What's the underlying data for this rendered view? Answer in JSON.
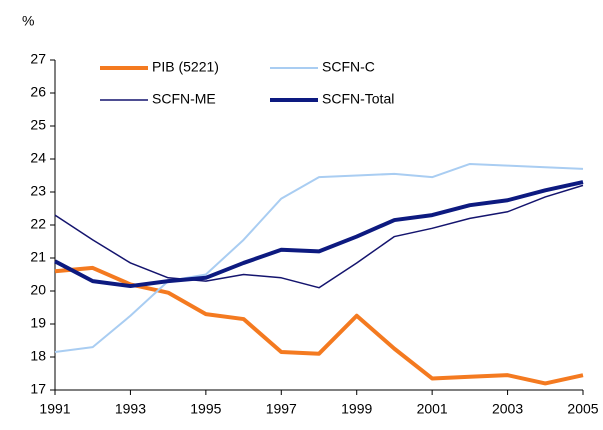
{
  "chart_data": {
    "type": "line",
    "y_label": "%",
    "x": [
      1991,
      1992,
      1993,
      1994,
      1995,
      1996,
      1997,
      1998,
      1999,
      2000,
      2001,
      2002,
      2003,
      2004,
      2005
    ],
    "series": [
      {
        "name": "PIB (5221)",
        "color": "#f47a20",
        "width": 4,
        "values": [
          20.6,
          20.7,
          20.2,
          19.95,
          19.3,
          19.15,
          18.15,
          18.1,
          19.25,
          18.25,
          17.35,
          17.4,
          17.45,
          17.2,
          17.45
        ]
      },
      {
        "name": "SCFN-C",
        "color": "#a9cdf2",
        "width": 2,
        "values": [
          18.15,
          18.3,
          19.25,
          20.3,
          20.5,
          21.55,
          22.8,
          23.45,
          23.5,
          23.55,
          23.45,
          23.85,
          23.8,
          23.75,
          23.7
        ]
      },
      {
        "name": "SCFN-ME",
        "color": "#14146e",
        "width": 1.5,
        "values": [
          22.3,
          21.55,
          20.85,
          20.4,
          20.3,
          20.5,
          20.4,
          20.1,
          20.85,
          21.65,
          21.9,
          22.2,
          22.4,
          22.85,
          23.2
        ]
      },
      {
        "name": "SCFN-Total",
        "color": "#0d1a80",
        "width": 4,
        "values": [
          20.9,
          20.3,
          20.15,
          20.3,
          20.4,
          20.85,
          21.25,
          21.2,
          21.65,
          22.15,
          22.3,
          22.6,
          22.75,
          23.05,
          23.3
        ]
      }
    ],
    "xlim": [
      1991,
      2005
    ],
    "xticks": [
      1991,
      1993,
      1995,
      1997,
      1999,
      2001,
      2003,
      2005
    ],
    "ylim": [
      17,
      27
    ],
    "yticks": [
      17,
      18,
      19,
      20,
      21,
      22,
      23,
      24,
      25,
      26,
      27
    ],
    "grid": false
  }
}
